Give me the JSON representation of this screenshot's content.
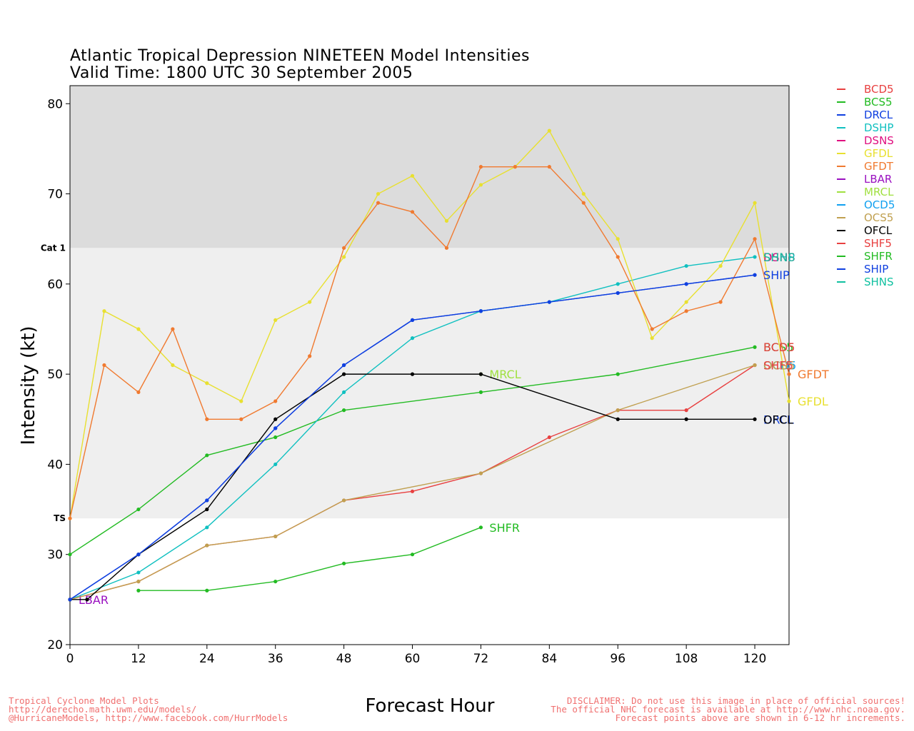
{
  "titles": {
    "line1": "Atlantic Tropical Depression NINETEEN Model Intensities",
    "line2": "Valid Time: 1800 UTC 30 September 2005"
  },
  "credits_left": [
    "Tropical Cyclone Model Plots",
    "http://derecho.math.uwm.edu/models/",
    "@HurricaneModels, http://www.facebook.com/HurrModels"
  ],
  "credits_right": [
    "DISCLAIMER: Do not use this image in place of official sources!",
    "The official NHC forecast is available at http://www.nhc.noaa.gov.",
    "Forecast points above are shown in 6-12 hr increments."
  ],
  "chart_data": {
    "type": "line",
    "xlabel": "Forecast Hour",
    "ylabel": "Intensity (kt)",
    "xlim": [
      0,
      126
    ],
    "ylim": [
      20,
      82
    ],
    "xticks": [
      0,
      12,
      24,
      36,
      48,
      60,
      72,
      84,
      96,
      108,
      120
    ],
    "yticks": [
      20,
      30,
      40,
      50,
      60,
      70,
      80
    ],
    "bands": [
      {
        "label": "TS",
        "from": 34,
        "to": 64,
        "color": "#efefef"
      },
      {
        "label": "Cat 1",
        "from": 64,
        "to": 82,
        "color": "#dcdcdc"
      }
    ],
    "legend_position": "right, outside plot",
    "series": [
      {
        "name": "BCD5",
        "color": "#e84040",
        "x": [
          0,
          12,
          24,
          36,
          48,
          60,
          72,
          84,
          96,
          108,
          120
        ],
        "y": [
          25,
          27,
          31,
          32,
          36,
          37,
          39,
          43,
          46,
          46,
          51
        ],
        "label": "",
        "label_hour": 120
      },
      {
        "name": "BCS5",
        "color": "#22bb22",
        "x": [
          0,
          12,
          24,
          36,
          48,
          72,
          96,
          120
        ],
        "y": [
          30,
          35,
          41,
          43,
          46,
          48,
          50,
          53
        ],
        "label": "BCS5",
        "label_hour": 120
      },
      {
        "name": "DRCL",
        "color": "#1040e0",
        "x": [
          0,
          12,
          24,
          36,
          48,
          60,
          72,
          84,
          96,
          108,
          120
        ],
        "y": [
          25,
          30,
          36,
          44,
          51,
          56,
          57,
          58,
          59,
          60,
          61
        ],
        "label": "",
        "label_hour": 120
      },
      {
        "name": "DSHP",
        "color": "#10c0c0",
        "x": [
          0,
          12,
          24,
          36,
          48,
          60,
          72,
          84,
          96,
          108,
          120
        ],
        "y": [
          25,
          28,
          33,
          40,
          48,
          54,
          57,
          58,
          60,
          62,
          63
        ],
        "label": "DSHP",
        "label_hour": 120
      },
      {
        "name": "DSNS",
        "color": "#e01080",
        "x": [],
        "y": [],
        "label": "DSNS",
        "label_hour": 120
      },
      {
        "name": "GFDL",
        "color": "#e8e030",
        "x": [
          0,
          6,
          12,
          18,
          24,
          30,
          36,
          42,
          48,
          54,
          60,
          66,
          72,
          78,
          84,
          90,
          96,
          102,
          108,
          114,
          120,
          126
        ],
        "y": [
          34,
          57,
          55,
          51,
          49,
          47,
          56,
          58,
          63,
          70,
          72,
          67,
          71,
          73,
          77,
          70,
          65,
          54,
          58,
          62,
          69,
          47
        ],
        "label": "GFDL",
        "label_hour": 126
      },
      {
        "name": "GFDT",
        "color": "#f07a30",
        "x": [
          0,
          6,
          12,
          18,
          24,
          30,
          36,
          42,
          48,
          54,
          60,
          66,
          72,
          78,
          84,
          90,
          96,
          102,
          108,
          114,
          120,
          126
        ],
        "y": [
          34,
          51,
          48,
          55,
          45,
          45,
          47,
          52,
          64,
          69,
          68,
          64,
          73,
          73,
          73,
          69,
          63,
          55,
          57,
          58,
          65,
          50
        ],
        "label": "GFDT",
        "label_hour": 126
      },
      {
        "name": "LBAR",
        "color": "#9a10c0",
        "x": [
          0
        ],
        "y": [
          25
        ],
        "label": "LBAR",
        "label_hour": 0
      },
      {
        "name": "MRCL",
        "color": "#a0e040",
        "x": [
          72
        ],
        "y": [
          50
        ],
        "label": "MRCL",
        "label_hour": 72
      },
      {
        "name": "OCD5",
        "color": "#10a0f0",
        "x": [],
        "y": [],
        "label": "",
        "label_hour": 120
      },
      {
        "name": "OCS5",
        "color": "#c0a050",
        "x": [
          0,
          12,
          24,
          36,
          48,
          72,
          96,
          120
        ],
        "y": [
          25,
          27,
          31,
          32,
          36,
          39,
          46,
          51
        ],
        "label": "",
        "label_hour": 120
      },
      {
        "name": "OFCL",
        "color": "#000000",
        "x": [
          0,
          3,
          12,
          24,
          36,
          48,
          60,
          72,
          96,
          108,
          120
        ],
        "y": [
          25,
          25,
          30,
          35,
          45,
          50,
          50,
          50,
          45,
          45,
          45
        ],
        "label": "",
        "label_hour": 120
      },
      {
        "name": "SHF5",
        "color": "#e84040",
        "x": [],
        "y": [],
        "label": "SHF5",
        "label_hour": 120
      },
      {
        "name": "SHFR",
        "color": "#22bb22",
        "x": [
          12,
          24,
          36,
          48,
          60,
          72
        ],
        "y": [
          26,
          26,
          27,
          29,
          30,
          33
        ],
        "label": "SHFR",
        "label_hour": 72
      },
      {
        "name": "SHIP",
        "color": "#1040e0",
        "x": [
          0,
          12,
          24,
          36,
          48,
          60,
          72,
          84,
          96,
          108,
          120
        ],
        "y": [
          25,
          30,
          36,
          44,
          51,
          56,
          57,
          58,
          59,
          60,
          61
        ],
        "label": "SHIP",
        "label_hour": 120
      },
      {
        "name": "SHNS",
        "color": "#10c0a0",
        "x": [],
        "y": [],
        "label": "",
        "label_hour": 120
      }
    ],
    "extra_labels": [
      {
        "text": "BCD5",
        "color": "#e84040",
        "x": 120,
        "y": 53
      },
      {
        "text": "DRCL",
        "color": "#1040e0",
        "x": 120,
        "y": 45
      },
      {
        "text": "OFCL",
        "color": "#000000",
        "x": 120,
        "y": 45
      },
      {
        "text": "OCD5",
        "color": "#10a0f0",
        "x": 120,
        "y": 51
      },
      {
        "text": "OCS5",
        "color": "#c0a050",
        "x": 120,
        "y": 51
      },
      {
        "text": "DSNS",
        "color": "#e01080",
        "x": 120,
        "y": 63
      },
      {
        "text": "SHNS",
        "color": "#10c0a0",
        "x": 120,
        "y": 63
      },
      {
        "text": "SHF5",
        "color": "#e84040",
        "x": 120,
        "y": 51
      }
    ]
  }
}
